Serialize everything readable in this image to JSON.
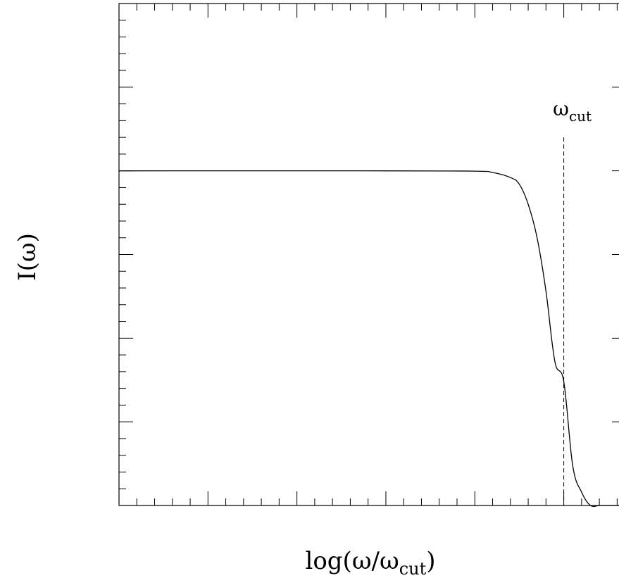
{
  "chart_data": {
    "type": "line",
    "xlabel": "log(ω/ω",
    "xlabel_sub": "cut",
    "xlabel_close": ")",
    "ylabel": "I(ω)",
    "xlim": [
      -5,
      0.7
    ],
    "ylim": [
      0,
      1.5
    ],
    "y_plateau": 1.0,
    "grid": false,
    "series": [
      {
        "x": [
          -5.0,
          -2.0,
          -1.0,
          -0.8,
          -0.6,
          -0.5,
          -0.4,
          -0.3,
          -0.2,
          -0.1,
          0.0,
          0.1,
          0.2,
          0.3,
          0.4,
          0.5,
          0.6,
          0.7
        ],
        "y": [
          1.0,
          1.0,
          0.999,
          0.995,
          0.98,
          0.96,
          0.9,
          0.8,
          0.64,
          0.43,
          0.37,
          0.12,
          0.04,
          0.0,
          0.0,
          0.0,
          0.0,
          0.0
        ]
      }
    ],
    "annotations": [
      {
        "x": 0.0,
        "style": "dashed-vertical",
        "label": "ω",
        "label_sub": "cut",
        "y_top": 1.1
      }
    ]
  }
}
